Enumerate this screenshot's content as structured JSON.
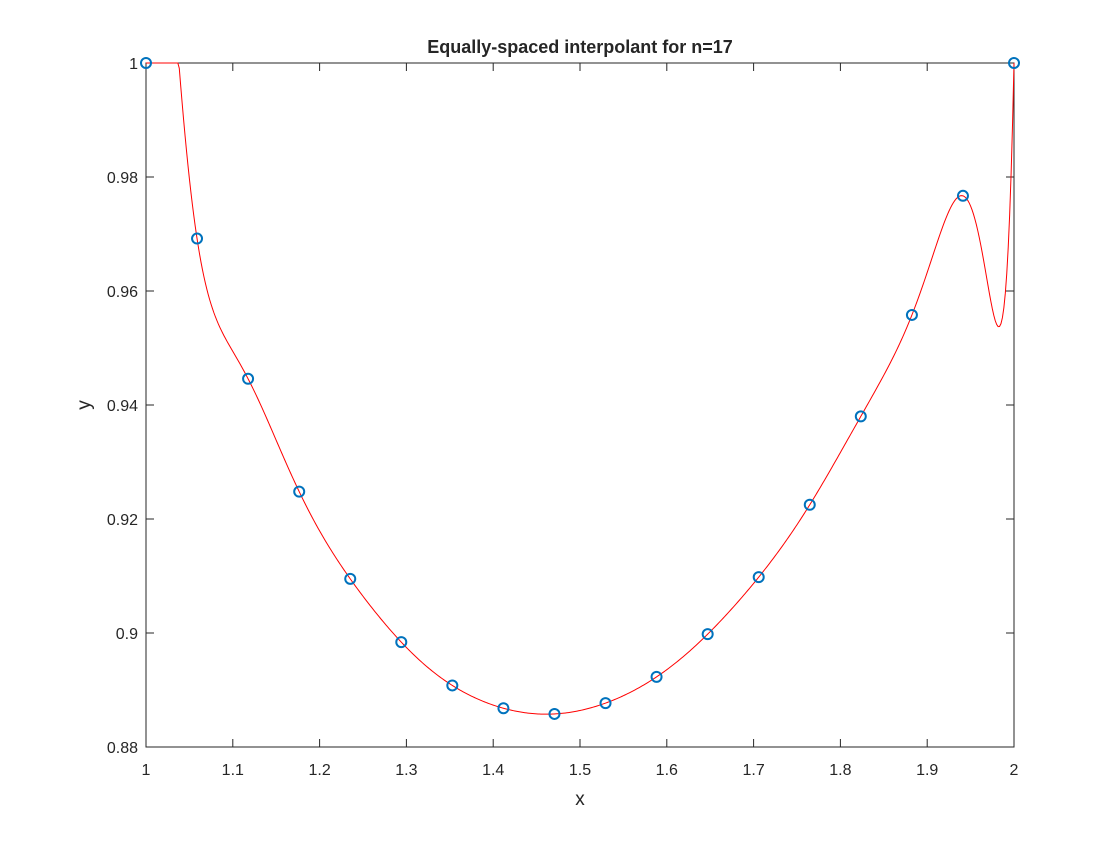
{
  "chart_data": {
    "type": "line",
    "title": "Equally-spaced interpolant for n=17",
    "xlabel": "x",
    "ylabel": "y",
    "xlim": [
      1,
      2
    ],
    "ylim": [
      0.88,
      1.0
    ],
    "xticks": [
      1,
      1.1,
      1.2,
      1.3,
      1.4,
      1.5,
      1.6,
      1.7,
      1.8,
      1.9,
      2
    ],
    "xtick_labels": [
      "1",
      "1.1",
      "1.2",
      "1.3",
      "1.4",
      "1.5",
      "1.6",
      "1.7",
      "1.8",
      "1.9",
      "2"
    ],
    "yticks": [
      0.88,
      0.9,
      0.92,
      0.94,
      0.96,
      0.98,
      1.0
    ],
    "ytick_labels": [
      "0.88",
      "0.9",
      "0.92",
      "0.94",
      "0.96",
      "0.98",
      "1"
    ],
    "grid": false,
    "legend": "none",
    "series": [
      {
        "kind": "markers",
        "marker": "circle",
        "color": "#0072bd",
        "x": [
          1.0,
          1.0588,
          1.1176,
          1.1765,
          1.2353,
          1.2941,
          1.3529,
          1.4118,
          1.4706,
          1.5294,
          1.5882,
          1.6471,
          1.7059,
          1.7647,
          1.8235,
          1.8824,
          1.9412,
          2.0
        ],
        "y": [
          1.0,
          0.9692,
          0.9446,
          0.9248,
          0.9095,
          0.8984,
          0.8908,
          0.8868,
          0.8858,
          0.8877,
          0.8923,
          0.8998,
          0.9098,
          0.9225,
          0.938,
          0.9558,
          0.9767,
          1.0
        ]
      },
      {
        "kind": "line",
        "color": "#ff0000",
        "x": [
          1.0,
          1.0588,
          1.1176,
          1.1765,
          1.2353,
          1.2941,
          1.3529,
          1.4118,
          1.4706,
          1.5294,
          1.5882,
          1.6471,
          1.7059,
          1.7647,
          1.8235,
          1.8824,
          1.9412,
          2.0
        ],
        "y": [
          1.0,
          0.9692,
          0.9446,
          0.9248,
          0.9095,
          0.8984,
          0.8908,
          0.8868,
          0.8858,
          0.8877,
          0.8923,
          0.8998,
          0.9098,
          0.9225,
          0.938,
          0.9558,
          0.9767,
          1.0
        ]
      }
    ]
  }
}
